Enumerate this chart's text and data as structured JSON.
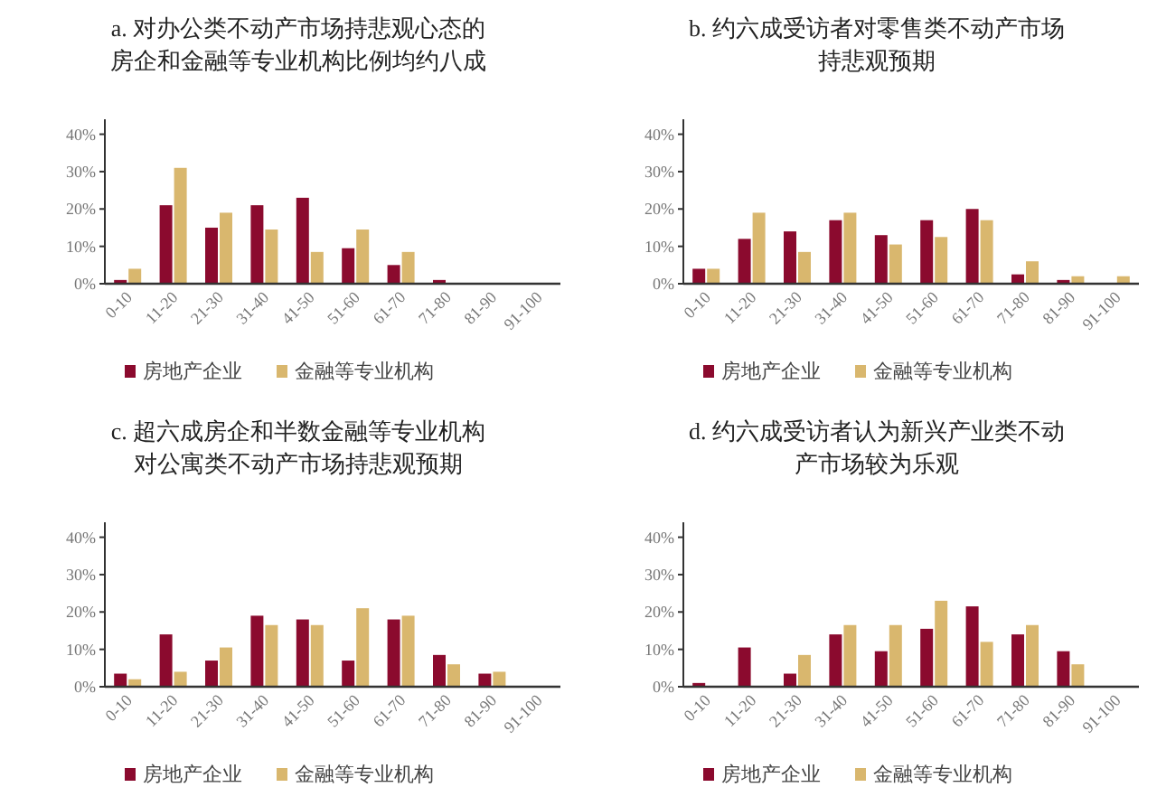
{
  "chart_data": [
    {
      "type": "bar",
      "title": "a. 对办公类不动产市场持悲观心态的房企和金融等专业机构比例均约八成",
      "categories": [
        "0-10",
        "11-20",
        "21-30",
        "31-40",
        "41-50",
        "51-60",
        "61-70",
        "71-80",
        "81-90",
        "91-100"
      ],
      "series": [
        {
          "name": "房地产企业",
          "color": "#8b0a2e",
          "values": [
            1,
            21,
            15,
            21,
            23,
            9.5,
            5,
            1,
            0,
            0
          ]
        },
        {
          "name": "金融等专业机构",
          "color": "#d9b76e",
          "values": [
            4,
            31,
            19,
            14.5,
            8.5,
            14.5,
            8.5,
            0,
            0,
            0
          ]
        }
      ],
      "ylim": [
        0,
        44
      ],
      "yticks": [
        {
          "value": 0,
          "label": "0%"
        },
        {
          "value": 10,
          "label": "10%"
        },
        {
          "value": 20,
          "label": "20%"
        },
        {
          "value": 30,
          "label": "30%"
        },
        {
          "value": 40,
          "label": "40%"
        }
      ],
      "legend": "bottom"
    },
    {
      "type": "bar",
      "title": "b. 约六成受访者对零售类不动产市场持悲观预期",
      "categories": [
        "0-10",
        "11-20",
        "21-30",
        "31-40",
        "41-50",
        "51-60",
        "61-70",
        "71-80",
        "81-90",
        "91-100"
      ],
      "series": [
        {
          "name": "房地产企业",
          "color": "#8b0a2e",
          "values": [
            4,
            12,
            14,
            17,
            13,
            17,
            20,
            2.5,
            1,
            0
          ]
        },
        {
          "name": "金融等专业机构",
          "color": "#d9b76e",
          "values": [
            4,
            19,
            8.5,
            19,
            10.5,
            12.5,
            17,
            6,
            2,
            2
          ]
        }
      ],
      "ylim": [
        0,
        44
      ],
      "yticks": [
        {
          "value": 0,
          "label": "0%"
        },
        {
          "value": 10,
          "label": "10%"
        },
        {
          "value": 20,
          "label": "20%"
        },
        {
          "value": 30,
          "label": "30%"
        },
        {
          "value": 40,
          "label": "40%"
        }
      ],
      "legend": "bottom"
    },
    {
      "type": "bar",
      "title": "c. 超六成房企和半数金融等专业机构对公寓类不动产市场持悲观预期",
      "categories": [
        "0-10",
        "11-20",
        "21-30",
        "31-40",
        "41-50",
        "51-60",
        "61-70",
        "71-80",
        "81-90",
        "91-100"
      ],
      "series": [
        {
          "name": "房地产企业",
          "color": "#8b0a2e",
          "values": [
            3.5,
            14,
            7,
            19,
            18,
            7,
            18,
            8.5,
            3.5,
            0
          ]
        },
        {
          "name": "金融等专业机构",
          "color": "#d9b76e",
          "values": [
            2,
            4,
            10.5,
            16.5,
            16.5,
            21,
            19,
            6,
            4,
            0
          ]
        }
      ],
      "ylim": [
        0,
        44
      ],
      "yticks": [
        {
          "value": 0,
          "label": "0%"
        },
        {
          "value": 10,
          "label": "10%"
        },
        {
          "value": 20,
          "label": "20%"
        },
        {
          "value": 30,
          "label": "30%"
        },
        {
          "value": 40,
          "label": "40%"
        }
      ],
      "legend": "bottom"
    },
    {
      "type": "bar",
      "title": "d. 约六成受访者认为新兴产业类不动产市场较为乐观",
      "categories": [
        "0-10",
        "11-20",
        "21-30",
        "31-40",
        "41-50",
        "51-60",
        "61-70",
        "71-80",
        "81-90",
        "91-100"
      ],
      "series": [
        {
          "name": "房地产企业",
          "color": "#8b0a2e",
          "values": [
            1,
            10.5,
            3.5,
            14,
            9.5,
            15.5,
            21.5,
            14,
            9.5,
            0
          ]
        },
        {
          "name": "金融等专业机构",
          "color": "#d9b76e",
          "values": [
            0,
            0,
            8.5,
            16.5,
            16.5,
            23,
            12,
            16.5,
            6,
            0
          ]
        }
      ],
      "ylim": [
        0,
        44
      ],
      "yticks": [
        {
          "value": 0,
          "label": "0%"
        },
        {
          "value": 10,
          "label": "10%"
        },
        {
          "value": 20,
          "label": "20%"
        },
        {
          "value": 30,
          "label": "30%"
        },
        {
          "value": 40,
          "label": "40%"
        }
      ],
      "legend": "bottom"
    }
  ]
}
